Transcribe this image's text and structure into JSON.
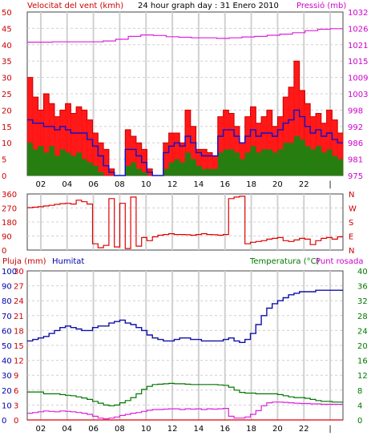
{
  "title": "24 hour graph day : 31 Enero 2010",
  "colors": {
    "wind": "#e00000",
    "wind_gust": "#ff0000",
    "avg": "#1010cc",
    "baro": "#dd22dd",
    "temp": "#007700",
    "dew": "#dd22dd",
    "rain": "#e00000",
    "hum": "#1010aa",
    "grid": "#d0d0d0",
    "frame": "#444444"
  },
  "x_ticks": [
    "02",
    "04",
    "06",
    "08",
    "10",
    "12",
    "14",
    "16",
    "18",
    "20",
    "22",
    "|"
  ],
  "chart_data": [
    {
      "type": "line",
      "name": "wind",
      "labels": {
        "left": "Velocitat del vent (kmh)",
        "right": "Pressió (mb)"
      },
      "y_left_ticks": [
        "50",
        "45",
        "40",
        "35",
        "30",
        "25",
        "20",
        "15",
        "10",
        "5",
        "0"
      ],
      "y_right_ticks": [
        "1032",
        "1026",
        "1021",
        "1015",
        "1009",
        "1003",
        "998",
        "992",
        "986",
        "981",
        "975"
      ],
      "ylim_left": [
        0,
        50
      ],
      "ylim_right": [
        975,
        1032
      ],
      "hours": 24,
      "series": [
        {
          "key": "gust",
          "values": [
            30,
            24,
            20,
            25,
            22,
            18,
            20,
            22,
            19,
            21,
            20,
            17,
            13,
            10,
            8,
            2,
            0,
            0,
            14,
            12,
            10,
            8,
            2,
            0,
            0,
            10,
            13,
            13,
            10,
            20,
            15,
            8,
            8,
            7,
            6,
            18,
            20,
            19,
            15,
            10,
            18,
            21,
            16,
            18,
            20,
            15,
            18,
            24,
            27,
            35,
            26,
            22,
            18,
            19,
            16,
            20,
            17,
            13
          ]
        },
        {
          "key": "avg",
          "values": [
            17,
            16,
            16,
            15,
            15,
            14,
            15,
            14,
            13,
            13,
            13,
            11,
            9,
            6,
            3,
            1,
            0,
            0,
            8,
            8,
            6,
            4,
            1,
            0,
            0,
            7,
            9,
            10,
            9,
            12,
            10,
            7,
            6,
            6,
            6,
            12,
            14,
            14,
            12,
            10,
            12,
            14,
            12,
            13,
            13,
            12,
            14,
            16,
            17,
            20,
            18,
            15,
            13,
            14,
            12,
            13,
            11,
            10
          ]
        },
        {
          "key": "low",
          "values": [
            10,
            8,
            9,
            7,
            9,
            6,
            8,
            7,
            6,
            7,
            5,
            4,
            3,
            1,
            0,
            0,
            0,
            0,
            3,
            4,
            2,
            1,
            0,
            0,
            0,
            2,
            4,
            5,
            4,
            7,
            5,
            3,
            2,
            2,
            2,
            7,
            8,
            8,
            7,
            5,
            7,
            9,
            7,
            8,
            8,
            7,
            8,
            10,
            10,
            12,
            11,
            9,
            8,
            9,
            7,
            8,
            6,
            5
          ]
        },
        {
          "key": "pressure",
          "values": [
            1021.5,
            1021.5,
            1021.6,
            1021.6,
            1021.6,
            1021.6,
            1021.9,
            1022.5,
            1023.5,
            1024,
            1023.8,
            1023.4,
            1023.2,
            1023,
            1023,
            1022.8,
            1023,
            1023.3,
            1023.5,
            1023.9,
            1024.3,
            1024.8,
            1025.5,
            1026,
            1026.2
          ]
        }
      ]
    },
    {
      "type": "line",
      "name": "direction",
      "labels": {
        "right": [
          "N",
          "W",
          "S",
          "E",
          "N"
        ]
      },
      "y_left_ticks": [
        "360",
        "270",
        "180",
        "90",
        "0"
      ],
      "ylim": [
        0,
        360
      ],
      "series": [
        {
          "key": "dir",
          "values": [
            272,
            275,
            278,
            283,
            287,
            293,
            298,
            300,
            295,
            320,
            310,
            295,
            40,
            15,
            30,
            330,
            20,
            300,
            10,
            340,
            25,
            80,
            60,
            85,
            95,
            100,
            105,
            100,
            100,
            98,
            95,
            100,
            105,
            100,
            98,
            95,
            100,
            330,
            340,
            345,
            40,
            50,
            55,
            60,
            70,
            75,
            80,
            60,
            55,
            65,
            75,
            70,
            35,
            60,
            75,
            80,
            70,
            85
          ]
        }
      ]
    },
    {
      "type": "line",
      "name": "temp",
      "labels": {
        "left_a": "Pluja (mm)",
        "left_b": "Humitat",
        "right": "Temperatura (°C)",
        "right_b": "Punt rosada"
      },
      "y_rain_ticks": [
        "30",
        "27",
        "24",
        "21",
        "18",
        "15",
        "12",
        "9",
        "6",
        "3",
        "0"
      ],
      "y_hum_ticks": [
        "100",
        "90",
        "80",
        "70",
        "60",
        "50",
        "40",
        "30",
        "20",
        "10",
        "0"
      ],
      "y_temp_ticks": [
        "40",
        "36",
        "32",
        "28",
        "24",
        "20",
        "16",
        "12",
        "8",
        "4",
        "0"
      ],
      "ylim_hum": [
        0,
        100
      ],
      "ylim_temp": [
        0,
        40
      ],
      "series": [
        {
          "key": "hum",
          "values": [
            53,
            54,
            55,
            56,
            58,
            60,
            62,
            63,
            62,
            61,
            60,
            60,
            62,
            63,
            63,
            65,
            66,
            67,
            65,
            64,
            62,
            60,
            57,
            55,
            54,
            53,
            53,
            54,
            55,
            55,
            54,
            54,
            53,
            53,
            53,
            53,
            54,
            55,
            53,
            52,
            54,
            58,
            64,
            70,
            75,
            78,
            80,
            82,
            84,
            85,
            86,
            86,
            86,
            87,
            87,
            87,
            87,
            87
          ]
        },
        {
          "key": "temp",
          "values": [
            7.5,
            7.5,
            7.5,
            7,
            7,
            7,
            6.8,
            6.6,
            6.5,
            6.2,
            5.9,
            5.5,
            5,
            4.5,
            4,
            3.8,
            4,
            4.6,
            5.2,
            6,
            7,
            8.2,
            9,
            9.5,
            9.6,
            9.7,
            9.8,
            9.7,
            9.7,
            9.6,
            9.5,
            9.5,
            9.5,
            9.5,
            9.5,
            9.4,
            9.3,
            8.8,
            8,
            7.4,
            7.2,
            7.2,
            7,
            7,
            7,
            7,
            6.8,
            6.5,
            6.2,
            6,
            6,
            5.8,
            5.5,
            5.2,
            5,
            5,
            4.8,
            4.8
          ]
        },
        {
          "key": "dew",
          "values": [
            1.8,
            2,
            2.2,
            2.4,
            2.3,
            2.2,
            2.4,
            2.3,
            2.2,
            2,
            1.8,
            1.5,
            1,
            0.5,
            0.3,
            0.5,
            0.8,
            1.2,
            1.5,
            1.8,
            2,
            2.3,
            2.6,
            2.8,
            2.8,
            2.9,
            3,
            3,
            2.8,
            3,
            2.9,
            3,
            2.8,
            3,
            2.9,
            3,
            3.1,
            1,
            0.5,
            0.5,
            0.8,
            1.5,
            2.5,
            3.8,
            4.6,
            4.8,
            4.8,
            4.7,
            4.6,
            4.5,
            4.4,
            4.4,
            4.3,
            4.3,
            4.2,
            4.2,
            4.2,
            4.2
          ]
        },
        {
          "key": "rain",
          "values": [
            0,
            0,
            0,
            0,
            0,
            0,
            0,
            0,
            0,
            0,
            0,
            0,
            0,
            0,
            0,
            0,
            0,
            0,
            0,
            0,
            0,
            0,
            0,
            0,
            0,
            0,
            0,
            0,
            0,
            0,
            0,
            0,
            0,
            0,
            0,
            0,
            0,
            0,
            0,
            0,
            0,
            0,
            0,
            0,
            0,
            0,
            0,
            0,
            0,
            0,
            0,
            0,
            0,
            0,
            0,
            0,
            0,
            0
          ]
        }
      ]
    }
  ]
}
